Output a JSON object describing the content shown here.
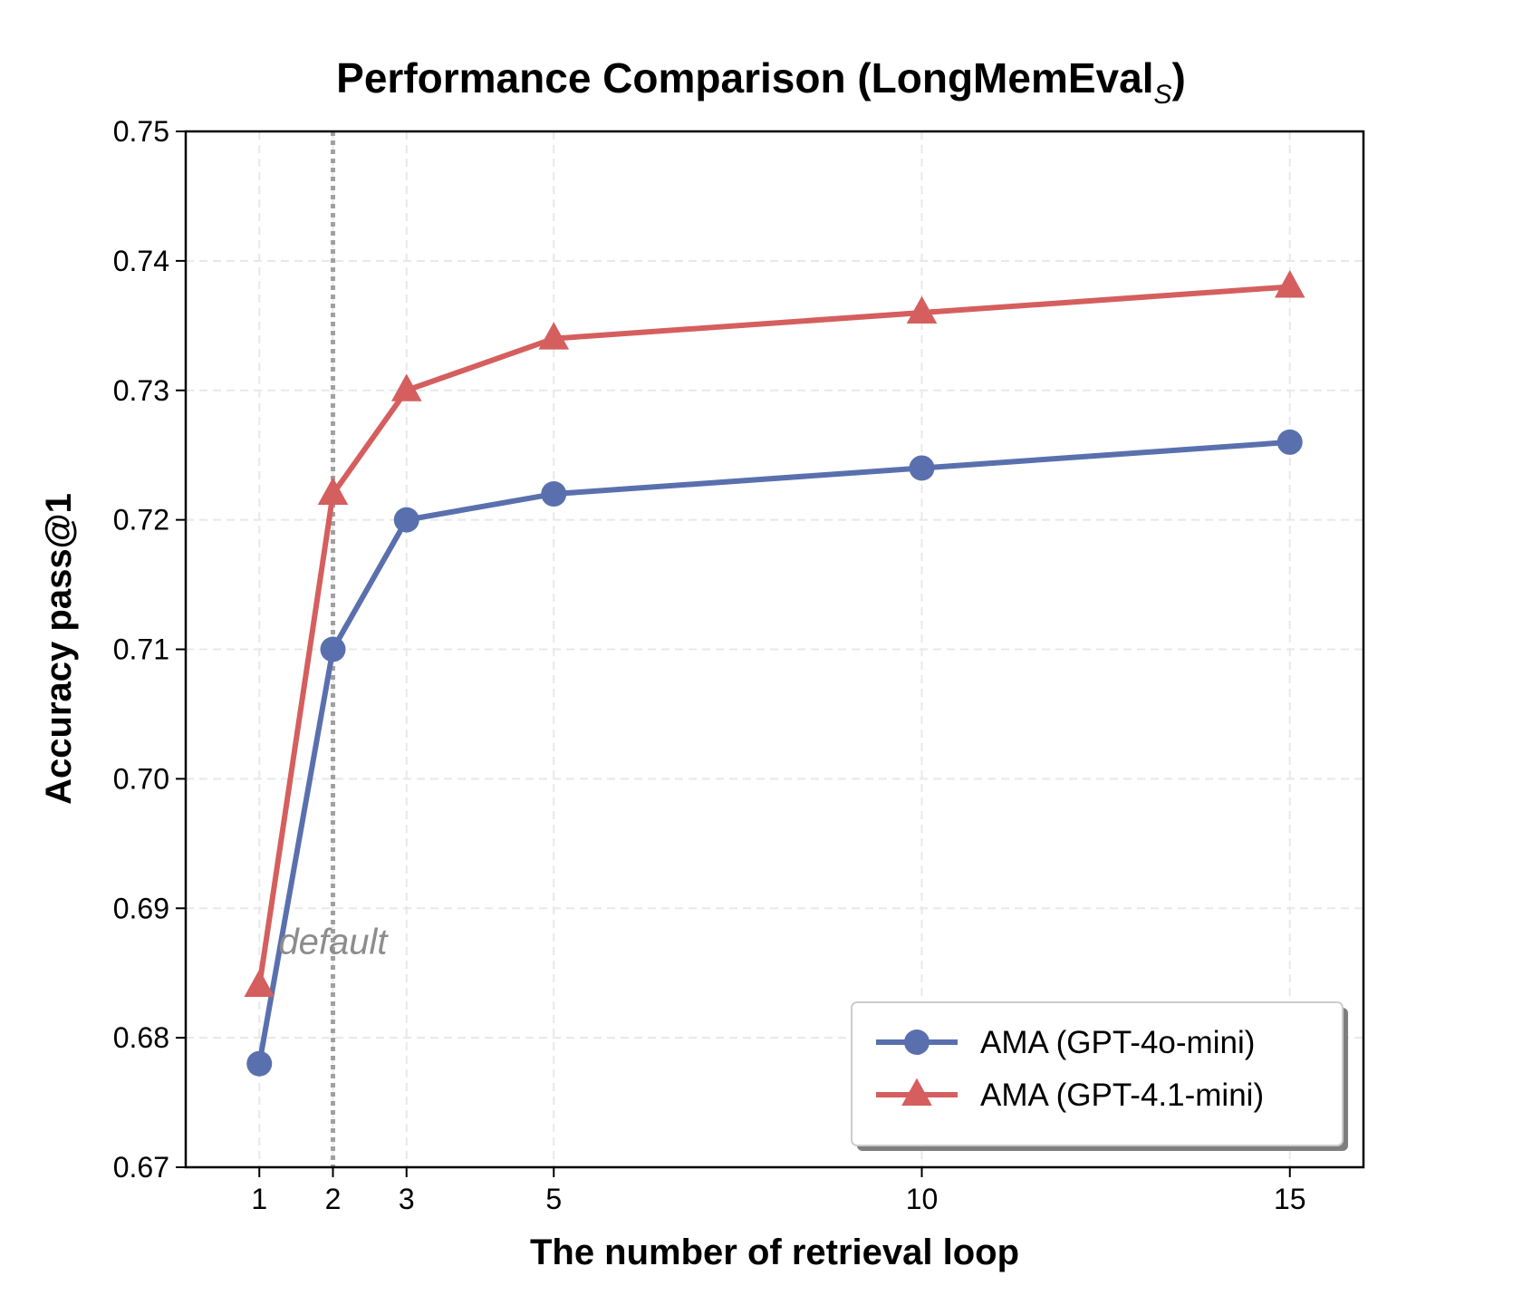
{
  "chart_data": {
    "type": "line",
    "title": "Performance Comparison (LongMemEval",
    "title_subscript": "S",
    "xlabel": "The number of retrieval loop",
    "ylabel": "Accuracy pass@1",
    "x": [
      1,
      2,
      3,
      5,
      10,
      15
    ],
    "xticks": [
      "1",
      "2",
      "3",
      "5",
      "10",
      "15"
    ],
    "xlim": [
      0,
      16
    ],
    "ylim": [
      0.67,
      0.75
    ],
    "yticks": [
      "0.67",
      "0.68",
      "0.69",
      "0.70",
      "0.71",
      "0.72",
      "0.73",
      "0.74",
      "0.75"
    ],
    "grid": true,
    "legend_position": "lower-right",
    "series": [
      {
        "name": "AMA (GPT-4o-mini)",
        "marker": "circle",
        "color": "#5a70ae",
        "values": [
          0.678,
          0.71,
          0.72,
          0.722,
          0.724,
          0.726
        ]
      },
      {
        "name": "AMA (GPT-4.1-mini)",
        "marker": "triangle",
        "color": "#d55e5e",
        "values": [
          0.684,
          0.722,
          0.73,
          0.734,
          0.736,
          0.738
        ]
      }
    ],
    "vline": {
      "x": 2,
      "color": "#a0a0a0",
      "style": "dotted"
    },
    "annotation": {
      "text": "default",
      "x": 2,
      "y": 0.6865
    }
  }
}
